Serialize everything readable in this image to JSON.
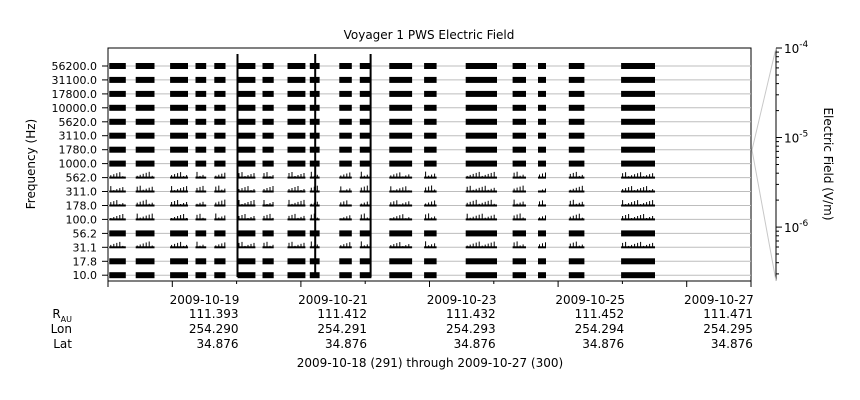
{
  "chart_data": {
    "type": "heatmap",
    "title": "Voyager 1 PWS Electric Field",
    "ylabel": "Frequency (Hz)",
    "zlabel": "Electric Field (V/m)",
    "channels": [
      "56200.0",
      "31100.0",
      "17800.0",
      "10000.0",
      "5620.0",
      "3110.0",
      "1780.0",
      "1000.0",
      "562.0",
      "311.0",
      "178.0",
      "100.0",
      "56.2",
      "31.1",
      "17.8",
      "10.0"
    ],
    "colorbar": {
      "scale": "log",
      "range": [
        2.5e-07,
        0.0001
      ],
      "ticks": [
        {
          "value": 0.0001,
          "base": "10",
          "exp": "-4"
        },
        {
          "value": 1e-05,
          "base": "10",
          "exp": "-5"
        },
        {
          "value": 1e-06,
          "base": "10",
          "exp": "-6"
        }
      ]
    },
    "x": {
      "start": "2009-10-18",
      "end": "2009-10-28",
      "ticks": [
        "2009-10-19",
        "2009-10-21",
        "2009-10-23",
        "2009-10-25",
        "2009-10-27"
      ],
      "range_label": "2009-10-18 (291) through 2009-10-27 (300)"
    },
    "coverage": [
      [
        "2009-10-18T00:30",
        "2009-10-18T06:40"
      ],
      [
        "2009-10-18T10:20",
        "2009-10-18T17:20"
      ],
      [
        "2009-10-18T23:10",
        "2009-10-19T05:50"
      ],
      [
        "2009-10-19T08:40",
        "2009-10-19T12:40"
      ],
      [
        "2009-10-19T15:40",
        "2009-10-19T19:50"
      ],
      [
        "2009-10-20T00:20",
        "2009-10-20T07:00"
      ],
      [
        "2009-10-20T09:40",
        "2009-10-20T13:50"
      ],
      [
        "2009-10-20T19:00",
        "2009-10-21T01:40"
      ],
      [
        "2009-10-21T03:20",
        "2009-10-21T07:00"
      ],
      [
        "2009-10-21T14:20",
        "2009-10-21T19:00"
      ],
      [
        "2009-10-21T22:00",
        "2009-10-22T02:20"
      ],
      [
        "2009-10-22T09:00",
        "2009-10-22T17:30"
      ],
      [
        "2009-10-22T22:00",
        "2009-10-23T02:40"
      ],
      [
        "2009-10-23T13:30",
        "2009-10-24T01:10"
      ],
      [
        "2009-10-24T07:00",
        "2009-10-24T12:00"
      ],
      [
        "2009-10-24T16:30",
        "2009-10-24T19:30"
      ],
      [
        "2009-10-25T04:00",
        "2009-10-25T09:50"
      ],
      [
        "2009-10-25T23:30",
        "2009-10-26T12:10"
      ]
    ],
    "spikes": [
      "2009-10-20T00:20",
      "2009-10-21T05:20",
      "2009-10-22T02:00"
    ],
    "ephemeris": {
      "rows": [
        {
          "label": "R",
          "sub": "AU",
          "values": [
            "111.393",
            "111.412",
            "111.432",
            "111.452",
            "111.471"
          ]
        },
        {
          "label": "Lon",
          "values": [
            "254.290",
            "254.291",
            "254.293",
            "254.294",
            "254.295"
          ]
        },
        {
          "label": "Lat",
          "values": [
            "34.876",
            "34.876",
            "34.876",
            "34.876",
            "34.876"
          ]
        }
      ]
    }
  }
}
